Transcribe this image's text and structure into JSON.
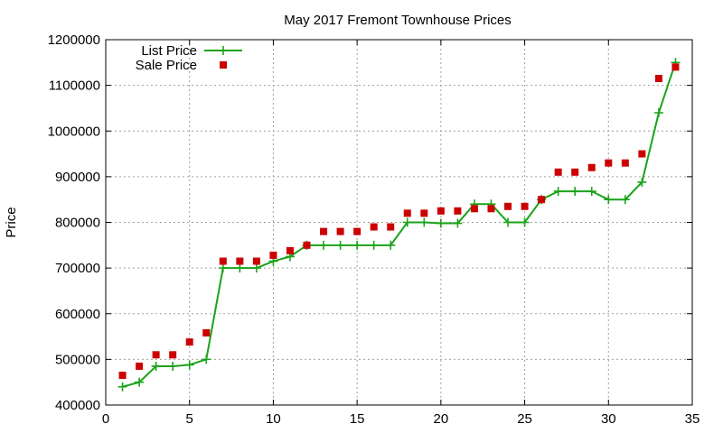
{
  "chart_data": {
    "type": "line",
    "title": "May 2017 Fremont Townhouse Prices",
    "xlabel": "",
    "ylabel": "Price",
    "xlim": [
      0,
      35
    ],
    "ylim": [
      400000,
      1200000
    ],
    "xticks": [
      0,
      5,
      10,
      15,
      20,
      25,
      30,
      35
    ],
    "yticks": [
      400000,
      500000,
      600000,
      700000,
      800000,
      900000,
      1000000,
      1100000,
      1200000
    ],
    "grid": true,
    "legend_position": "top-left",
    "x": [
      1,
      2,
      3,
      4,
      5,
      6,
      7,
      8,
      9,
      10,
      11,
      12,
      13,
      14,
      15,
      16,
      17,
      18,
      19,
      20,
      21,
      22,
      23,
      24,
      25,
      26,
      27,
      28,
      29,
      30,
      31,
      32,
      33,
      34
    ],
    "series": [
      {
        "name": "List Price",
        "style": "line-with-plus-markers",
        "color": "#1aa31a",
        "values": [
          440000,
          450000,
          485000,
          485000,
          488000,
          500000,
          700000,
          700000,
          700000,
          715000,
          725000,
          750000,
          750000,
          750000,
          750000,
          750000,
          750000,
          800000,
          800000,
          798000,
          798000,
          840000,
          840000,
          800000,
          800000,
          850000,
          868000,
          868000,
          868000,
          850000,
          850000,
          888000,
          1040000,
          1150000
        ]
      },
      {
        "name": "Sale Price",
        "style": "square-markers",
        "color": "#cc0000",
        "values": [
          465000,
          485000,
          510000,
          510000,
          538000,
          558000,
          715000,
          715000,
          715000,
          728000,
          738000,
          750000,
          780000,
          780000,
          780000,
          790000,
          790000,
          820000,
          820000,
          825000,
          825000,
          830000,
          830000,
          835000,
          835000,
          850000,
          910000,
          910000,
          920000,
          930000,
          930000,
          950000,
          1115000,
          1140000
        ]
      }
    ]
  }
}
